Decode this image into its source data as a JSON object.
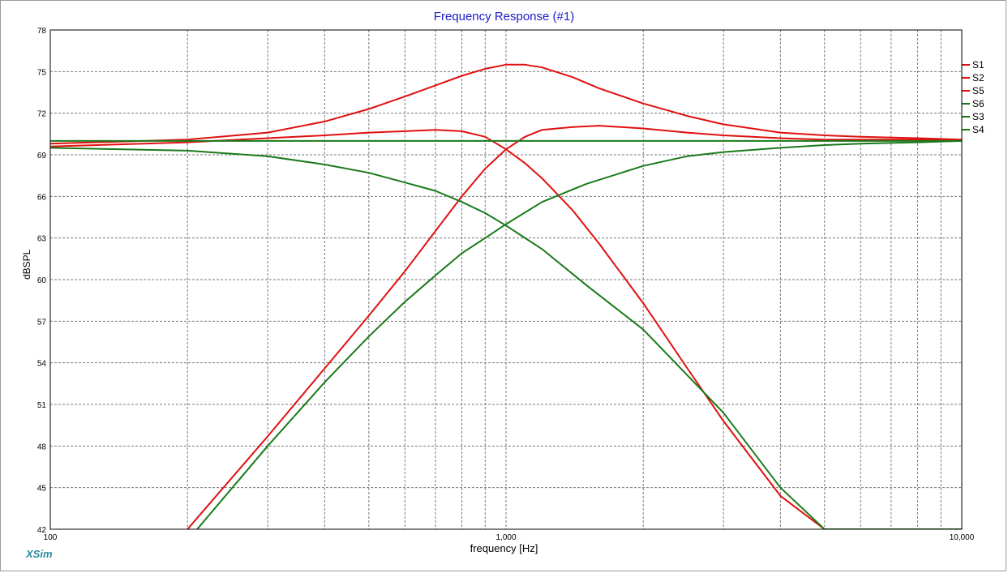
{
  "app": {
    "brand": "XSim"
  },
  "chart_data": {
    "type": "line",
    "title": "Frequency Response (#1)",
    "xlabel": "frequency [Hz]",
    "ylabel": "dBSPL",
    "x_scale": "log",
    "xlim": [
      100,
      10000
    ],
    "ylim": [
      42,
      78
    ],
    "grid": true,
    "legend_position": "right",
    "y_ticks": [
      42,
      45,
      48,
      51,
      54,
      57,
      60,
      63,
      66,
      69,
      72,
      75,
      78
    ],
    "x_ticks": [
      100,
      1000,
      10000
    ],
    "x_tick_labels": [
      "100",
      "1,000",
      "10,000"
    ],
    "series": [
      {
        "name": "S1",
        "color": "#e01010",
        "x": [
          100,
          200,
          300,
          400,
          500,
          600,
          700,
          800,
          900,
          1000,
          1100,
          1200,
          1400,
          1600,
          2000,
          2500,
          3000,
          4000,
          5000,
          6000,
          8000,
          10000
        ],
        "y": [
          69.8,
          70.1,
          70.6,
          71.4,
          72.3,
          73.2,
          74.0,
          74.7,
          75.2,
          75.5,
          75.5,
          75.3,
          74.6,
          73.8,
          72.7,
          71.8,
          71.2,
          70.6,
          70.4,
          70.3,
          70.2,
          70.1
        ]
      },
      {
        "name": "S2",
        "color": "#e01010",
        "x": [
          100,
          200,
          300,
          400,
          500,
          600,
          700,
          800,
          900,
          1000,
          1100,
          1200,
          1400,
          1600,
          2000,
          2500,
          3000,
          4000,
          5000
        ],
        "y": [
          69.6,
          69.9,
          70.2,
          70.4,
          70.6,
          70.7,
          70.8,
          70.7,
          70.3,
          69.4,
          68.4,
          67.3,
          65.0,
          62.6,
          58.3,
          53.6,
          49.8,
          44.4,
          42.0
        ]
      },
      {
        "name": "S5",
        "color": "#e01010",
        "x": [
          200,
          300,
          400,
          500,
          600,
          700,
          800,
          900,
          1000,
          1100,
          1200,
          1400,
          1600,
          2000,
          2500,
          3000,
          4000,
          5000,
          6000,
          8000,
          10000
        ],
        "y": [
          42.0,
          48.7,
          53.6,
          57.4,
          60.6,
          63.5,
          66.0,
          68.0,
          69.4,
          70.3,
          70.8,
          71.0,
          71.1,
          70.9,
          70.6,
          70.4,
          70.2,
          70.1,
          70.1,
          70.1,
          70.0
        ]
      },
      {
        "name": "S6",
        "color": "#1a7a1a",
        "x": [
          100,
          200,
          300,
          400,
          500,
          600,
          700,
          800,
          900,
          1000,
          1200,
          1500,
          2000,
          3000,
          4000,
          5000,
          7000,
          10000
        ],
        "y": [
          69.5,
          69.3,
          68.9,
          68.3,
          67.7,
          67.0,
          66.4,
          65.6,
          64.8,
          63.9,
          62.2,
          59.6,
          56.4,
          50.4,
          45.0,
          42.0,
          42.0,
          42.0
        ]
      },
      {
        "name": "S3",
        "color": "#1a7a1a",
        "x": [
          210,
          300,
          400,
          500,
          600,
          700,
          800,
          900,
          1000,
          1200,
          1500,
          2000,
          2500,
          3000,
          4000,
          5000,
          6000,
          8000,
          10000
        ],
        "y": [
          42.0,
          48.0,
          52.6,
          55.9,
          58.4,
          60.3,
          61.9,
          63.0,
          64.0,
          65.6,
          66.9,
          68.2,
          68.9,
          69.2,
          69.5,
          69.7,
          69.8,
          69.9,
          70.0
        ]
      },
      {
        "name": "S4",
        "color": "#1a7a1a",
        "x": [
          100,
          10000
        ],
        "y": [
          70.0,
          70.0
        ]
      }
    ]
  }
}
